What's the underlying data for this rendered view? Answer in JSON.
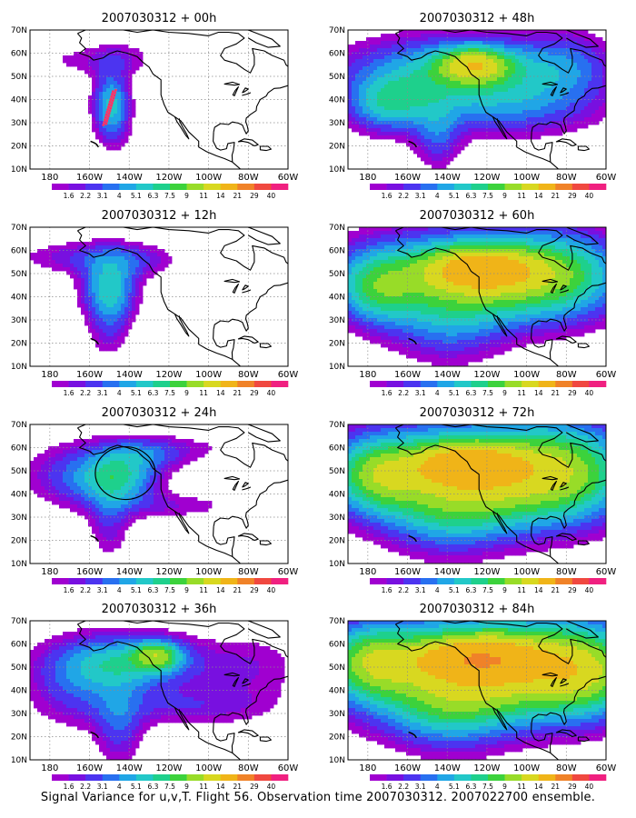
{
  "caption": "Signal Variance for u,v,T. Flight 56. Observation time 2007030312. 2007022700 ensemble.",
  "colors": {
    "levels": [
      "#a000d0",
      "#7810e0",
      "#4c34f0",
      "#2870f0",
      "#20a6e6",
      "#22c8c8",
      "#1ed08c",
      "#3cd23c",
      "#98dc28",
      "#d8d820",
      "#f0b418",
      "#f08228",
      "#f04840",
      "#f02080"
    ],
    "background": "#ffffff",
    "coast": "#000000"
  },
  "colorbar_labels": [
    "1.6",
    "2.2",
    "3.1",
    "4",
    "5.1",
    "6.3",
    "7.5",
    "9",
    "11",
    "14",
    "21",
    "29",
    "40"
  ],
  "axes": {
    "lon_labels": [
      "180",
      "160W",
      "140W",
      "120W",
      "100W",
      "80W",
      "60W"
    ],
    "lat_labels": [
      "10N",
      "20N",
      "30N",
      "40N",
      "50N",
      "60N",
      "70N"
    ],
    "lon_range": [
      -190,
      -60
    ],
    "lat_range": [
      10,
      70
    ]
  },
  "panels": [
    {
      "title": "2007030312 + 00h",
      "lead_hours": 0
    },
    {
      "title": "2007030312 + 48h",
      "lead_hours": 48
    },
    {
      "title": "2007030312 + 12h",
      "lead_hours": 12
    },
    {
      "title": "2007030312 + 60h",
      "lead_hours": 60
    },
    {
      "title": "2007030312 + 24h",
      "lead_hours": 24
    },
    {
      "title": "2007030312 + 72h",
      "lead_hours": 72
    },
    {
      "title": "2007030312 + 36h",
      "lead_hours": 36
    },
    {
      "title": "2007030312 + 84h",
      "lead_hours": 84
    }
  ]
}
